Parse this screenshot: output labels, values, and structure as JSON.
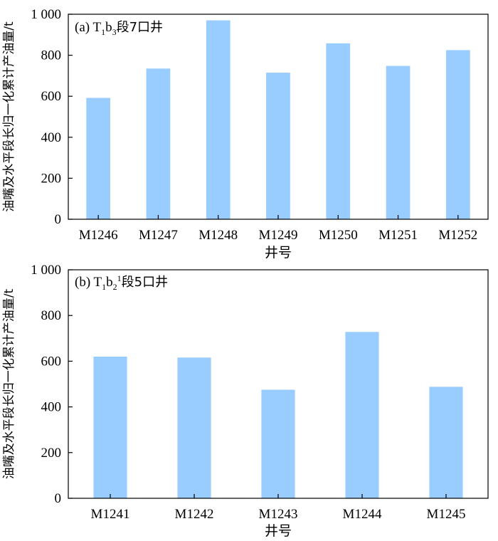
{
  "chart_data": [
    {
      "type": "bar",
      "annotation": {
        "prefix": "(a) T",
        "sub1": "1",
        "mid": "b",
        "sub2": "3",
        "sup": "",
        "suffix": "段7口井"
      },
      "categories": [
        "M1246",
        "M1247",
        "M1248",
        "M1249",
        "M1250",
        "M1251",
        "M1252"
      ],
      "values": [
        592,
        735,
        970,
        715,
        858,
        748,
        825
      ],
      "ylim": [
        0,
        1000
      ],
      "yticks": [
        0,
        200,
        400,
        600,
        800,
        1000
      ],
      "ytick_labels": [
        "0",
        "200",
        "400",
        "600",
        "800",
        "1 000"
      ],
      "xlabel": "井号",
      "ylabel": "油嘴及水平段长归一化累计产油量/t",
      "bar_color": "#99ccff"
    },
    {
      "type": "bar",
      "annotation": {
        "prefix": "(b) T",
        "sub1": "1",
        "mid": "b",
        "sub2": "2",
        "sup": "1",
        "suffix": "段5口井"
      },
      "categories": [
        "M1241",
        "M1242",
        "M1243",
        "M1244",
        "M1245"
      ],
      "values": [
        620,
        616,
        475,
        728,
        488
      ],
      "ylim": [
        0,
        1000
      ],
      "yticks": [
        0,
        200,
        400,
        600,
        800,
        1000
      ],
      "ytick_labels": [
        "0",
        "200",
        "400",
        "600",
        "800",
        "1 000"
      ],
      "xlabel": "井号",
      "ylabel": "油嘴及水平段长归一化累计产油量/t",
      "bar_color": "#99ccff"
    }
  ]
}
